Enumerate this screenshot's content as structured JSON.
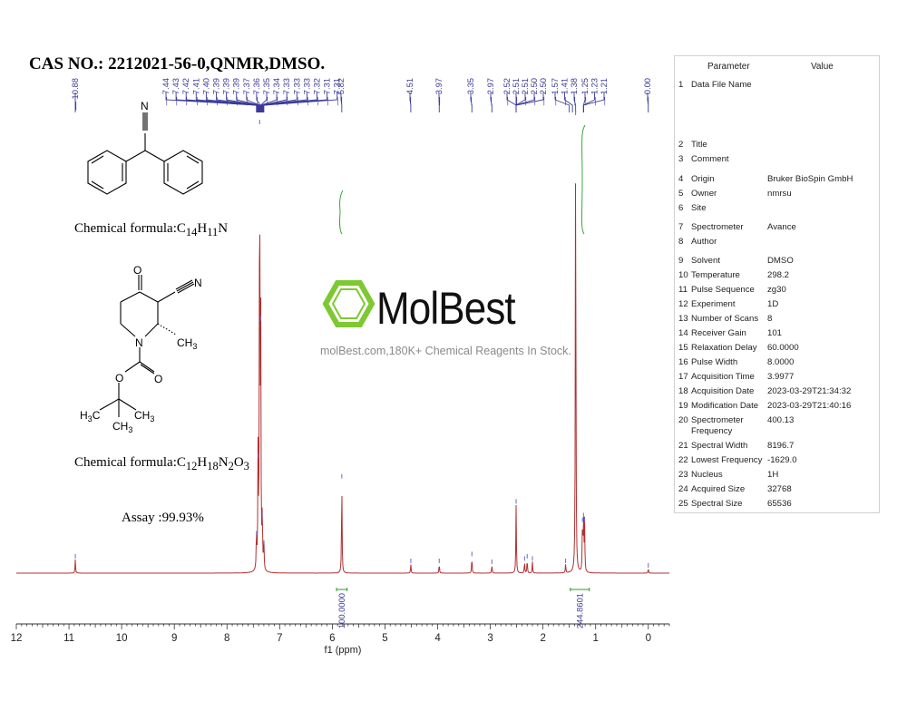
{
  "header": {
    "cas": "CAS NO.: 2212021-56-0,QNMR,DMSO."
  },
  "structures": {
    "formula1_prefix": "Chemical formula:C",
    "formula1_sub1": "14",
    "formula1_mid": "H",
    "formula1_sub2": "11",
    "formula1_end": "N",
    "formula2_prefix": "Chemical formula:C",
    "formula2_sub1": "12",
    "formula2_mid1": "H",
    "formula2_sub2": "18",
    "formula2_mid2": "N",
    "formula2_sub3": "2",
    "formula2_mid3": "O",
    "formula2_sub4": "3",
    "assay": "Assay :99.93%",
    "atom_N1": "N",
    "atom_O1": "O",
    "atom_N2": "N",
    "atom_N3": "N",
    "atom_CH3": "CH",
    "atom_CH3_sub": "3",
    "atom_O2": "O",
    "atom_O3": "O",
    "atom_H3C": "H",
    "atom_H3C_sub": "3",
    "atom_H3C_c": "C",
    "atom_CH3b": "CH",
    "atom_CH3b_sub": "3",
    "atom_CH3c": "CH",
    "atom_CH3c_sub": "3"
  },
  "watermark": {
    "brand": "MolBest",
    "tagline": "molBest.com,180K+ Chemical Reagents In Stock."
  },
  "parameters": {
    "header_param": "Parameter",
    "header_value": "Value",
    "rows": [
      {
        "n": "1",
        "label": "Data File Name",
        "value": ""
      },
      {
        "n": "2",
        "label": "Title",
        "value": ""
      },
      {
        "n": "3",
        "label": "Comment",
        "value": ""
      },
      {
        "n": "4",
        "label": "Origin",
        "value": "Bruker BioSpin GmbH"
      },
      {
        "n": "5",
        "label": "Owner",
        "value": "nmrsu"
      },
      {
        "n": "6",
        "label": "Site",
        "value": ""
      },
      {
        "n": "7",
        "label": "Spectrometer",
        "value": "Avance"
      },
      {
        "n": "8",
        "label": "Author",
        "value": ""
      },
      {
        "n": "9",
        "label": "Solvent",
        "value": "DMSO"
      },
      {
        "n": "10",
        "label": "Temperature",
        "value": "298.2"
      },
      {
        "n": "11",
        "label": "Pulse Sequence",
        "value": "zg30"
      },
      {
        "n": "12",
        "label": "Experiment",
        "value": "1D"
      },
      {
        "n": "13",
        "label": "Number of Scans",
        "value": "8"
      },
      {
        "n": "14",
        "label": "Receiver Gain",
        "value": "101"
      },
      {
        "n": "15",
        "label": "Relaxation Delay",
        "value": "60.0000"
      },
      {
        "n": "16",
        "label": "Pulse Width",
        "value": "8.0000"
      },
      {
        "n": "17",
        "label": "Acquisition Time",
        "value": "3.9977"
      },
      {
        "n": "18",
        "label": "Acquisition Date",
        "value": "2023-03-29T21:34:32"
      },
      {
        "n": "19",
        "label": "Modification Date",
        "value": "2023-03-29T21:40:16"
      },
      {
        "n": "20",
        "label": "Spectrometer Frequency",
        "value": "400.13"
      },
      {
        "n": "21",
        "label": "Spectral Width",
        "value": "8196.7"
      },
      {
        "n": "22",
        "label": "Lowest Frequency",
        "value": "-1629.0"
      },
      {
        "n": "23",
        "label": "Nucleus",
        "value": "1H"
      },
      {
        "n": "24",
        "label": "Acquired Size",
        "value": "32768"
      },
      {
        "n": "25",
        "label": "Spectral Size",
        "value": "65536"
      }
    ]
  },
  "chart_data": {
    "type": "line",
    "xlabel": "f1 (ppm)",
    "xlim": [
      12,
      -0.4
    ],
    "x_ticks": [
      12,
      11,
      10,
      9,
      8,
      7,
      6,
      5,
      4,
      3,
      2,
      1,
      0
    ],
    "x_tick_labels": [
      "12",
      "11",
      "10",
      "9",
      "8",
      "7",
      "6",
      "5",
      "4",
      "3",
      "2",
      "1",
      "0"
    ],
    "peak_labels": [
      "10.88",
      "7.44",
      "7.43",
      "7.42",
      "7.41",
      "7.40",
      "7.39",
      "7.39",
      "7.39",
      "7.37",
      "7.36",
      "7.35",
      "7.34",
      "7.33",
      "7.33",
      "7.33",
      "7.32",
      "7.31",
      "7.31",
      "5.82",
      "4.51",
      "3.97",
      "3.35",
      "2.97",
      "2.52",
      "2.51",
      "2.51",
      "2.50",
      "2.50",
      "1.57",
      "1.41",
      "1.38",
      "1.25",
      "1.23",
      "1.21",
      "0.00"
    ],
    "peaks": [
      {
        "ppm": 10.88,
        "intensity": 0.03
      },
      {
        "ppm": 7.44,
        "intensity": 0.08
      },
      {
        "ppm": 7.41,
        "intensity": 0.25
      },
      {
        "ppm": 7.38,
        "intensity": 0.98
      },
      {
        "ppm": 7.36,
        "intensity": 0.55
      },
      {
        "ppm": 7.33,
        "intensity": 0.12
      },
      {
        "ppm": 7.3,
        "intensity": 0.06
      },
      {
        "ppm": 5.82,
        "intensity": 0.205
      },
      {
        "ppm": 4.51,
        "intensity": 0.02
      },
      {
        "ppm": 3.97,
        "intensity": 0.02
      },
      {
        "ppm": 3.35,
        "intensity": 0.035
      },
      {
        "ppm": 2.97,
        "intensity": 0.018
      },
      {
        "ppm": 2.51,
        "intensity": 0.15
      },
      {
        "ppm": 2.35,
        "intensity": 0.025
      },
      {
        "ppm": 2.3,
        "intensity": 0.03
      },
      {
        "ppm": 2.2,
        "intensity": 0.025
      },
      {
        "ppm": 1.57,
        "intensity": 0.02
      },
      {
        "ppm": 1.38,
        "intensity": 1.0
      },
      {
        "ppm": 1.25,
        "intensity": 0.11
      },
      {
        "ppm": 1.23,
        "intensity": 0.12
      },
      {
        "ppm": 1.21,
        "intensity": 0.11
      },
      {
        "ppm": 0.0,
        "intensity": 0.01
      }
    ],
    "integrals": [
      {
        "from": 5.92,
        "to": 5.72,
        "label": "100.0000"
      },
      {
        "from": 1.48,
        "to": 1.12,
        "label": "244.8601"
      }
    ],
    "colors": {
      "trace": "#b03030",
      "labels": "#3a3a9a",
      "integral": "#2e9a2e",
      "axis": "#333333"
    }
  }
}
